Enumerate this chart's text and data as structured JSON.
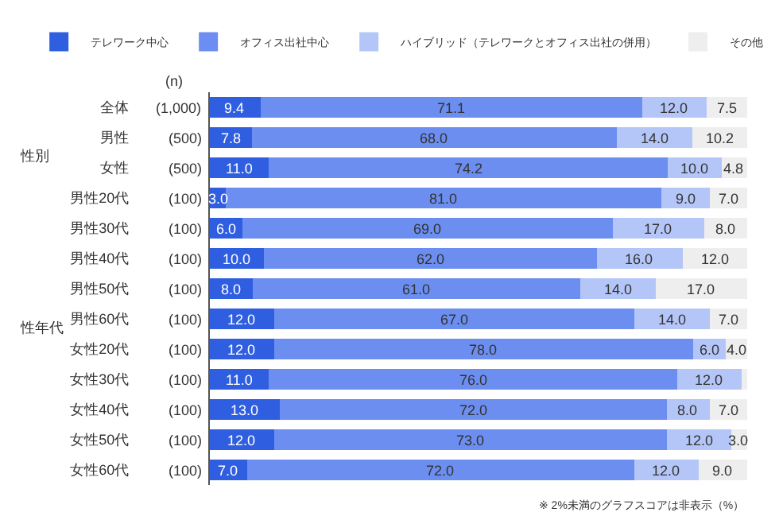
{
  "chart_data": {
    "type": "bar",
    "orientation": "horizontal",
    "stacked": true,
    "xlim": [
      0,
      100
    ],
    "tick_labels": "y",
    "legend": "top",
    "categories": [
      "全体",
      "男性",
      "女性",
      "男性20代",
      "男性30代",
      "男性40代",
      "男性50代",
      "男性60代",
      "女性20代",
      "女性30代",
      "女性40代",
      "女性50代",
      "女性60代"
    ],
    "series": [
      {
        "name": "テレワーク中心",
        "color": "#2f5fe0",
        "values": [
          9.4,
          7.8,
          11.0,
          3.0,
          6.0,
          10.0,
          8.0,
          12.0,
          12.0,
          11.0,
          13.0,
          12.0,
          7.0
        ],
        "value_labels": [
          "9.4",
          "7.8",
          "11.0",
          "3.0",
          "6.0",
          "10.0",
          "8.0",
          "12.0",
          "12.0",
          "11.0",
          "13.0",
          "12.0",
          "7.0"
        ]
      },
      {
        "name": "オフィス出社中心",
        "color": "#6b8ef0",
        "values": [
          71.1,
          68.0,
          74.2,
          81.0,
          69.0,
          62.0,
          61.0,
          67.0,
          78.0,
          76.0,
          72.0,
          73.0,
          72.0
        ],
        "value_labels": [
          "71.1",
          "68.0",
          "74.2",
          "81.0",
          "69.0",
          "62.0",
          "61.0",
          "67.0",
          "78.0",
          "76.0",
          "72.0",
          "73.0",
          "72.0"
        ]
      },
      {
        "name": "ハイブリッド（テレワークとオフィス出社の併用）",
        "color": "#b4c6f8",
        "values": [
          12.0,
          14.0,
          10.0,
          9.0,
          17.0,
          16.0,
          14.0,
          14.0,
          6.0,
          12.0,
          8.0,
          12.0,
          12.0
        ],
        "value_labels": [
          "12.0",
          "14.0",
          "10.0",
          "9.0",
          "17.0",
          "16.0",
          "14.0",
          "14.0",
          "6.0",
          "12.0",
          "8.0",
          "12.0",
          "12.0"
        ]
      },
      {
        "name": "その他",
        "color": "#eeeeee",
        "values": [
          7.5,
          10.2,
          4.8,
          7.0,
          8.0,
          12.0,
          17.0,
          7.0,
          4.0,
          1.0,
          7.0,
          3.0,
          9.0
        ],
        "value_labels": [
          "7.5",
          "10.2",
          "4.8",
          "7.0",
          "8.0",
          "12.0",
          "17.0",
          "7.0",
          "4.0",
          null,
          "7.0",
          "3.0",
          "9.0"
        ]
      }
    ],
    "annotations": [
      "(n)",
      "性別",
      "性年代",
      "※ 2%未満のグラフスコアは非表示（%）",
      "(1,000)",
      "(500)",
      "(500)",
      "(100)",
      "(100)",
      "(100)",
      "(100)",
      "(100)",
      "(100)",
      "(100)",
      "(100)",
      "(100)",
      "(100)"
    ]
  }
}
